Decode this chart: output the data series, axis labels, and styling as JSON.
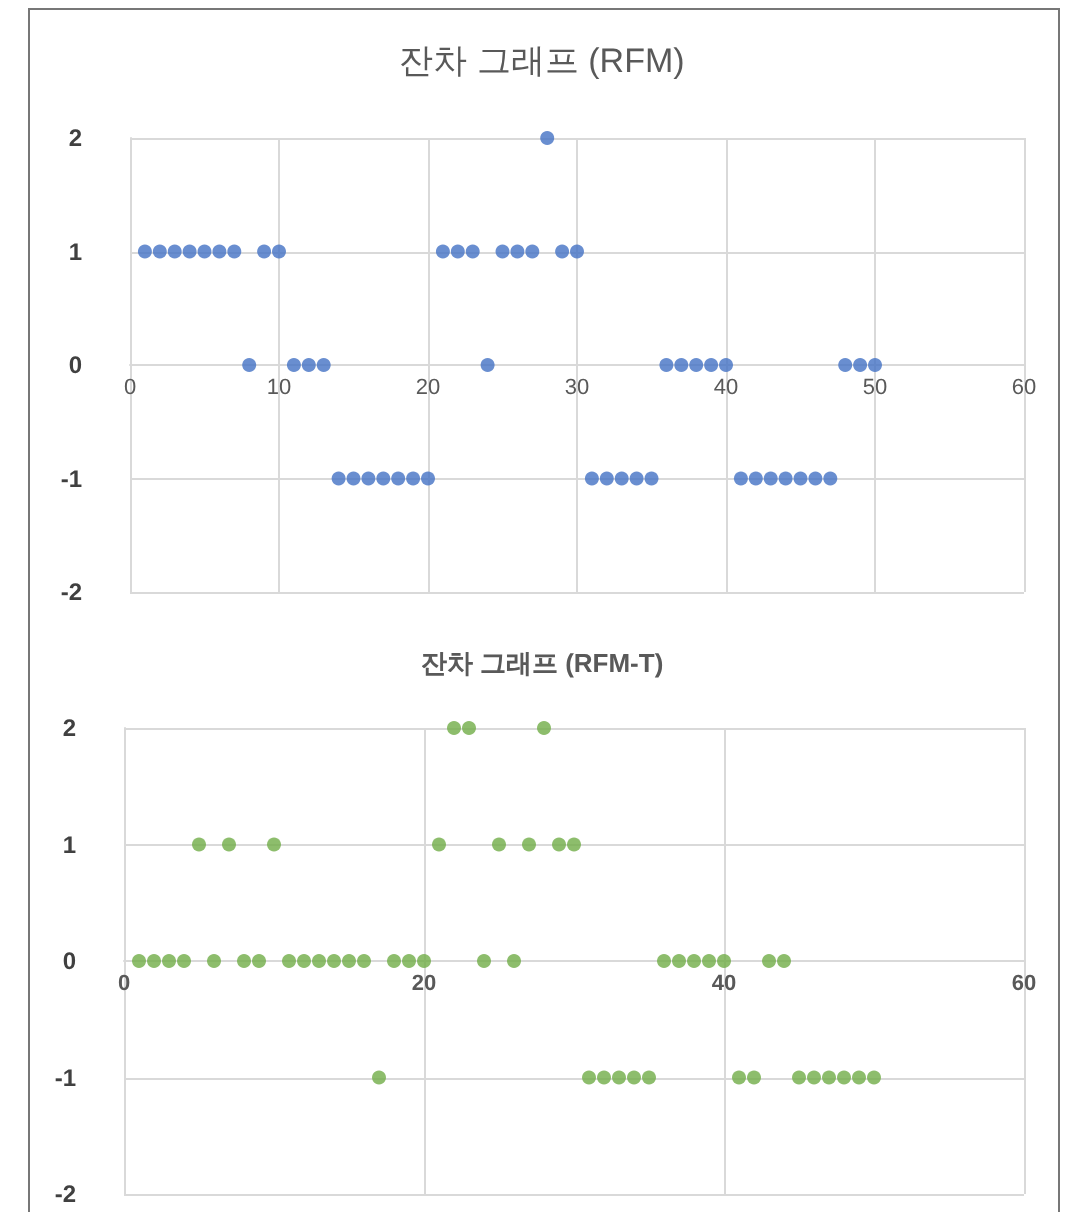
{
  "chart_data": [
    {
      "type": "scatter",
      "title": "잔차 그래프 (RFM)",
      "x": [
        1,
        2,
        3,
        4,
        5,
        6,
        7,
        8,
        9,
        10,
        11,
        12,
        13,
        14,
        15,
        16,
        17,
        18,
        19,
        20,
        21,
        22,
        23,
        24,
        25,
        26,
        27,
        28,
        29,
        30,
        31,
        32,
        33,
        34,
        35,
        36,
        37,
        38,
        39,
        40,
        41,
        42,
        43,
        44,
        45,
        46,
        47,
        48,
        49,
        50
      ],
      "series": [
        {
          "color": "#4472c4",
          "values": [
            1,
            1,
            1,
            1,
            1,
            1,
            1,
            0,
            1,
            1,
            0,
            0,
            0,
            -1,
            -1,
            -1,
            -1,
            -1,
            -1,
            -1,
            1,
            1,
            1,
            0,
            1,
            1,
            1,
            2,
            1,
            1,
            -1,
            -1,
            -1,
            -1,
            -1,
            0,
            0,
            0,
            0,
            0,
            -1,
            -1,
            -1,
            -1,
            -1,
            -1,
            -1,
            0,
            0,
            0
          ]
        }
      ],
      "xlim": [
        0,
        60
      ],
      "xticks": [
        0,
        10,
        20,
        30,
        40,
        50,
        60
      ],
      "ylim": [
        -2,
        2
      ],
      "yticks": [
        -2,
        -1,
        0,
        1,
        2
      ],
      "grid": true,
      "marker": "circle"
    },
    {
      "type": "scatter",
      "title": "잔차 그래프 (RFM-T)",
      "x": [
        1,
        2,
        3,
        4,
        5,
        6,
        7,
        8,
        9,
        10,
        11,
        12,
        13,
        14,
        15,
        16,
        17,
        18,
        19,
        20,
        21,
        22,
        23,
        24,
        25,
        26,
        27,
        28,
        29,
        30,
        31,
        32,
        33,
        34,
        35,
        36,
        37,
        38,
        39,
        40,
        41,
        42,
        43,
        44,
        45,
        46,
        47,
        48,
        49,
        50
      ],
      "series": [
        {
          "color": "#70ad47",
          "values": [
            0,
            0,
            0,
            0,
            1,
            0,
            1,
            0,
            0,
            1,
            0,
            0,
            0,
            0,
            0,
            0,
            -1,
            0,
            0,
            0,
            1,
            2,
            2,
            0,
            1,
            0,
            1,
            2,
            1,
            1,
            -1,
            -1,
            -1,
            -1,
            -1,
            0,
            0,
            0,
            0,
            0,
            -1,
            -1,
            0,
            0,
            -1,
            -1,
            -1,
            -1,
            -1,
            -1
          ]
        }
      ],
      "xlim": [
        0,
        60
      ],
      "xticks": [
        0,
        20,
        40,
        60
      ],
      "ylim": [
        -2,
        2
      ],
      "yticks": [
        -2,
        -1,
        0,
        1,
        2
      ],
      "grid": true,
      "marker": "circle"
    }
  ]
}
